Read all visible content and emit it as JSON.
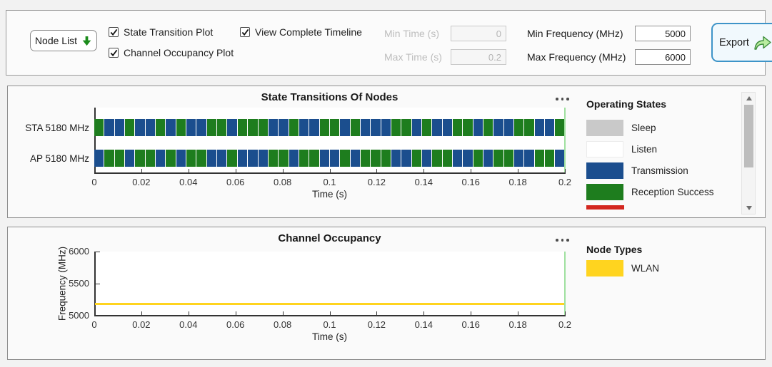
{
  "colors": {
    "page_bg": "#f2f2f2",
    "panel_bg": "#fafafa",
    "panel_border": "#8f8f8f",
    "transmission_blue": "#1b4e8e",
    "reception_green": "#1e7d1e",
    "sleep_gray": "#c9c9c9",
    "listen_white": "#ffffff",
    "failure_red": "#d3271f",
    "wlan_yellow": "#ffd41f",
    "timeline_cursor_green": "#9fe09f",
    "export_border_blue": "#3e94c8",
    "node_list_arrow_green": "#1c8c1c"
  },
  "toolbar": {
    "node_list_label": "Node List",
    "checkboxes": [
      {
        "label": "State Transition Plot",
        "checked": true
      },
      {
        "label": "Channel Occupancy Plot",
        "checked": true
      },
      {
        "label": "View Complete Timeline",
        "checked": true
      }
    ],
    "min_time_label": "Min Time (s)",
    "min_time_value": "0",
    "max_time_label": "Max Time (s)",
    "max_time_value": "0.2",
    "min_freq_label": "Min Frequency (MHz)",
    "min_freq_value": "5000",
    "max_freq_label": "Max Frequency (MHz)",
    "max_freq_value": "6000",
    "export_label": "Export"
  },
  "chart_data": [
    {
      "type": "timeline",
      "title": "State Transitions Of Nodes",
      "xlabel": "Time (s)",
      "xlim": [
        0,
        0.2
      ],
      "x_tick_labels": [
        "0",
        "0.02",
        "0.04",
        "0.06",
        "0.08",
        "0.1",
        "0.12",
        "0.14",
        "0.16",
        "0.18",
        "0.2"
      ],
      "state_colors": {
        "G": "#1e7d1e",
        "B": "#1b4e8e"
      },
      "state_names": {
        "G": "Reception Success",
        "B": "Transmission"
      },
      "rows": [
        {
          "label": "STA 5180 MHz",
          "pattern": "GBBGBBGBGBBGGBGGGBBGBBGGBGBBBGGBGBBGGBGBBGGBBG"
        },
        {
          "label": "AP 5180 MHz",
          "pattern": "BGGBGGBGBGGBBGBBBGGBGGBBGBGGGBBGBGGBBGBGGBBGGB"
        }
      ],
      "legend": {
        "title": "Operating States",
        "items": [
          {
            "label": "Sleep",
            "color": "#c9c9c9"
          },
          {
            "label": "Listen",
            "color": "#ffffff"
          },
          {
            "label": "Transmission",
            "color": "#1b4e8e"
          },
          {
            "label": "Reception Success",
            "color": "#1e7d1e"
          }
        ],
        "partial_item_color": "#d3271f"
      }
    },
    {
      "type": "line",
      "title": "Channel Occupancy",
      "xlabel": "Time (s)",
      "ylabel": "Frequency (MHz)",
      "xlim": [
        0,
        0.2
      ],
      "ylim": [
        5000,
        6000
      ],
      "x_tick_labels": [
        "0",
        "0.02",
        "0.04",
        "0.06",
        "0.08",
        "0.1",
        "0.12",
        "0.14",
        "0.16",
        "0.18",
        "0.2"
      ],
      "y_tick_labels_top_to_bottom": [
        "6000",
        "5500",
        "5000"
      ],
      "series": [
        {
          "name": "WLAN",
          "color": "#ffd41f",
          "frequency_mhz": 5180,
          "x_start": 0,
          "x_end": 0.2
        }
      ],
      "legend": {
        "title": "Node Types",
        "items": [
          {
            "label": "WLAN",
            "color": "#ffd41f"
          }
        ]
      }
    }
  ]
}
